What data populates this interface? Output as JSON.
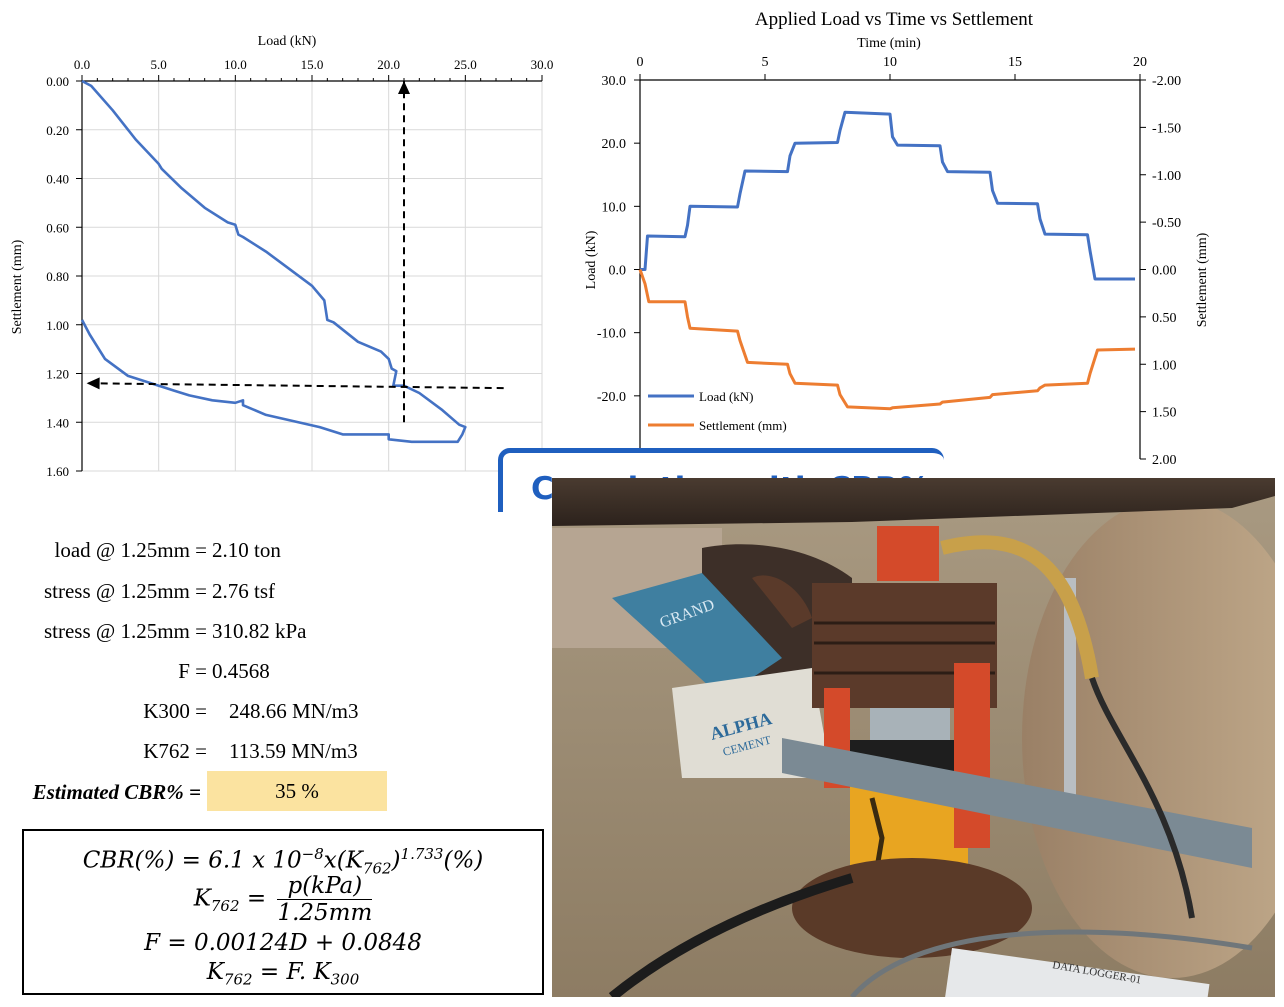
{
  "chart_data": [
    {
      "type": "line",
      "xlabel": "Load (kN)",
      "ylabel": "Settlement  (mm)",
      "x_axis_position": "top",
      "y_inverted": true,
      "xlim": [
        0,
        30
      ],
      "ylim": [
        0,
        1.6
      ],
      "x_ticks": [
        "0.0",
        "5.0",
        "10.0",
        "15.0",
        "20.0",
        "25.0",
        "30.0"
      ],
      "y_ticks": [
        "0.00",
        "0.20",
        "0.40",
        "0.60",
        "0.80",
        "1.00",
        "1.20",
        "1.40",
        "1.60"
      ],
      "grid": true,
      "series": [
        {
          "color": "#4472c4",
          "x": [
            0.0,
            0.6,
            2.0,
            3.5,
            5.0,
            5.2,
            6.5,
            8.0,
            9.5,
            10.0,
            10.2,
            10.5,
            12.0,
            13.5,
            15.0,
            15.8,
            16.0,
            16.4,
            18.0,
            19.5,
            20.0,
            20.2,
            20.5,
            20.3,
            21.0,
            22.0,
            23.5,
            24.6,
            25.0,
            24.8,
            24.5,
            23.0,
            21.5,
            20.0,
            20.0,
            19.5,
            17.0,
            15.5,
            12.0,
            10.5,
            10.5,
            10.0,
            8.5,
            7.0,
            6.0,
            5.5,
            4.5,
            3.0,
            1.5,
            0.5,
            0.0
          ],
          "y": [
            0.0,
            0.02,
            0.12,
            0.24,
            0.34,
            0.36,
            0.44,
            0.52,
            0.58,
            0.59,
            0.63,
            0.64,
            0.7,
            0.77,
            0.84,
            0.9,
            0.98,
            0.99,
            1.07,
            1.11,
            1.14,
            1.18,
            1.19,
            1.25,
            1.25,
            1.28,
            1.35,
            1.41,
            1.42,
            1.45,
            1.48,
            1.48,
            1.48,
            1.47,
            1.45,
            1.45,
            1.45,
            1.42,
            1.37,
            1.33,
            1.31,
            1.32,
            1.31,
            1.29,
            1.27,
            1.26,
            1.24,
            1.21,
            1.14,
            1.04,
            0.98
          ]
        }
      ],
      "annotations": [
        {
          "type": "arrow",
          "from": [
            21.0,
            1.4
          ],
          "to": [
            21.0,
            0.0
          ],
          "style": "dashed"
        },
        {
          "type": "arrow",
          "from": [
            27.5,
            1.26
          ],
          "to": [
            0.3,
            1.24
          ],
          "style": "dashed"
        }
      ]
    },
    {
      "type": "line",
      "title": "Applied Load vs Time vs Settlement",
      "xlabel": "Time (min)",
      "x_axis_position": "top",
      "xlim": [
        0,
        20
      ],
      "x_ticks": [
        "0",
        "5",
        "10",
        "15",
        "20"
      ],
      "y_left": {
        "label": "Load  (kN)",
        "lim": [
          -30,
          30
        ],
        "ticks": [
          "30.0",
          "20.0",
          "10.0",
          "0.0",
          "-10.0",
          "-20.0"
        ]
      },
      "y_right": {
        "label": "Settlement  (mm)",
        "lim": [
          2.0,
          -2.0
        ],
        "ticks": [
          "-2.00",
          "-1.50",
          "-1.00",
          "-0.50",
          "0.00",
          "0.50",
          "1.00",
          "1.50",
          "2.00"
        ]
      },
      "grid": false,
      "legend_position": "bottom-left",
      "series": [
        {
          "name": "Load (kN)",
          "axis": "left",
          "color": "#4472c4",
          "x": [
            0.0,
            0.2,
            0.3,
            1.8,
            1.9,
            2.0,
            3.9,
            4.0,
            4.2,
            5.9,
            6.0,
            6.2,
            7.9,
            8.0,
            8.2,
            10.0,
            10.1,
            10.3,
            12.0,
            12.1,
            12.3,
            14.0,
            14.1,
            14.3,
            15.9,
            16.0,
            16.2,
            17.9,
            18.0,
            18.2,
            19.8
          ],
          "y": [
            0.0,
            0.0,
            5.3,
            5.2,
            7.0,
            10.0,
            9.9,
            12.0,
            15.6,
            15.5,
            18.0,
            20.0,
            20.1,
            22.0,
            24.9,
            24.6,
            21.0,
            19.7,
            19.6,
            17.0,
            15.5,
            15.4,
            12.5,
            10.5,
            10.4,
            8.0,
            5.6,
            5.5,
            3.0,
            -1.5,
            -1.5
          ]
        },
        {
          "name": "Settlement (mm)",
          "axis": "right",
          "color": "#ed7d31",
          "x": [
            0.0,
            0.2,
            0.35,
            1.8,
            1.9,
            2.0,
            3.9,
            4.0,
            4.3,
            5.9,
            6.0,
            6.2,
            7.9,
            8.0,
            8.3,
            10.0,
            10.1,
            12.0,
            12.1,
            14.0,
            14.1,
            15.9,
            16.0,
            16.2,
            17.9,
            18.0,
            18.3,
            19.8
          ],
          "y": [
            0.0,
            0.15,
            0.34,
            0.34,
            0.5,
            0.62,
            0.65,
            0.75,
            0.98,
            1.0,
            1.1,
            1.2,
            1.22,
            1.32,
            1.45,
            1.47,
            1.46,
            1.42,
            1.4,
            1.35,
            1.32,
            1.28,
            1.25,
            1.22,
            1.2,
            1.1,
            0.85,
            0.84
          ]
        }
      ]
    }
  ],
  "banner": {
    "title": "Correlation with CBR%"
  },
  "results": [
    {
      "label": "load @ 1.25mm =",
      "value": "2.10 ton"
    },
    {
      "label": "stress @ 1.25mm =",
      "value": "2.76 tsf"
    },
    {
      "label": "stress @ 1.25mm =",
      "value": "310.82 kPa"
    },
    {
      "label": "F =",
      "value": "0.4568"
    },
    {
      "label": "K300 =",
      "value": "248.66 MN/m3"
    },
    {
      "label": "K762 =",
      "value": "113.59 MN/m3"
    }
  ],
  "cbr": {
    "label": "Estimated CBR% =",
    "value": "35 %"
  },
  "formulas": {
    "line1_a": "CBR(%) = 6.1 x 10",
    "line1_exp1": "−8",
    "line1_b": "x(K",
    "line1_sub": "762",
    "line1_c": ")",
    "line1_exp2": "1.733",
    "line1_d": "(%)",
    "line2_lhs": "K",
    "line2_sub": "762",
    "line2_eq": " = ",
    "line2_num": "p(kPa)",
    "line2_den": "1.25mm",
    "line3": "F = 0.00124D + 0.0848",
    "line4_a": "K",
    "line4_sub1": "762",
    "line4_b": " = F. K",
    "line4_sub2": "300"
  },
  "photo": {
    "bag_text_1": "GRAND",
    "bag_text_2": "ALPHA",
    "bag_text_3": "CEMENT",
    "logger_label": "DATA LOGGER-01"
  }
}
